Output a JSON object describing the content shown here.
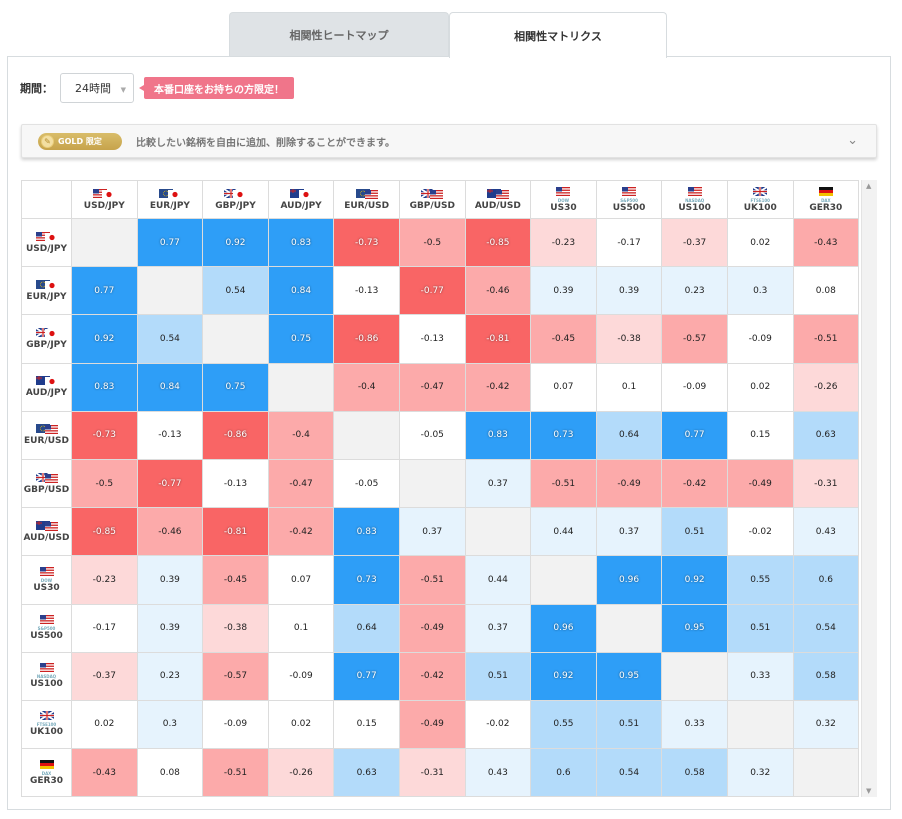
{
  "tabs": [
    {
      "label": "相関性ヒートマップ",
      "active": false
    },
    {
      "label": "相関性マトリクス",
      "active": true
    }
  ],
  "period": {
    "label": "期間：",
    "value": "24時間"
  },
  "promo": {
    "label": "本番口座をお持ちの方限定！"
  },
  "gold": {
    "badge": "GOLD 限定",
    "text": "比較したい銘柄を自由に追加、削除することができます。"
  },
  "colors": {
    "strong_pos": "#2e9ef7",
    "mid_pos": "#b3dbfa",
    "weak_pos": "#e6f3fd",
    "strong_neg": "#f96565",
    "mid_neg": "#fcaaaa",
    "weak_neg": "#fdd9d9",
    "neutral": "#ffffff",
    "diag": "#f2f2f2"
  },
  "symbols": [
    {
      "label": "USD/JPY",
      "flags": [
        "us",
        "jp"
      ],
      "sub": ""
    },
    {
      "label": "EUR/JPY",
      "flags": [
        "eu",
        "jp"
      ],
      "sub": ""
    },
    {
      "label": "GBP/JPY",
      "flags": [
        "gb",
        "jp"
      ],
      "sub": ""
    },
    {
      "label": "AUD/JPY",
      "flags": [
        "au",
        "jp"
      ],
      "sub": ""
    },
    {
      "label": "EUR/USD",
      "flags": [
        "eu",
        "us"
      ],
      "sub": ""
    },
    {
      "label": "GBP/USD",
      "flags": [
        "gb",
        "us"
      ],
      "sub": ""
    },
    {
      "label": "AUD/USD",
      "flags": [
        "au",
        "us"
      ],
      "sub": ""
    },
    {
      "label": "US30",
      "flags": [
        "us"
      ],
      "sub": "DOW"
    },
    {
      "label": "US500",
      "flags": [
        "us"
      ],
      "sub": "S&P500"
    },
    {
      "label": "US100",
      "flags": [
        "us"
      ],
      "sub": "NASDAQ"
    },
    {
      "label": "UK100",
      "flags": [
        "gb"
      ],
      "sub": "FTSE100"
    },
    {
      "label": "GER30",
      "flags": [
        "de"
      ],
      "sub": "DAX"
    }
  ],
  "matrix": [
    [
      null,
      0.77,
      0.92,
      0.83,
      -0.73,
      -0.5,
      -0.85,
      -0.23,
      -0.17,
      -0.37,
      0.02,
      -0.43
    ],
    [
      0.77,
      null,
      0.54,
      0.84,
      -0.13,
      -0.77,
      -0.46,
      0.39,
      0.39,
      0.23,
      0.3,
      0.08
    ],
    [
      0.92,
      0.54,
      null,
      0.75,
      -0.86,
      -0.13,
      -0.81,
      -0.45,
      -0.38,
      -0.57,
      -0.09,
      -0.51
    ],
    [
      0.83,
      0.84,
      0.75,
      null,
      -0.4,
      -0.47,
      -0.42,
      0.07,
      0.1,
      -0.09,
      0.02,
      -0.26
    ],
    [
      -0.73,
      -0.13,
      -0.86,
      -0.4,
      null,
      -0.05,
      0.83,
      0.73,
      0.64,
      0.77,
      0.15,
      0.63
    ],
    [
      -0.5,
      -0.77,
      -0.13,
      -0.47,
      -0.05,
      null,
      0.37,
      -0.51,
      -0.49,
      -0.42,
      -0.49,
      -0.31
    ],
    [
      -0.85,
      -0.46,
      -0.81,
      -0.42,
      0.83,
      0.37,
      null,
      0.44,
      0.37,
      0.51,
      -0.02,
      0.43
    ],
    [
      -0.23,
      0.39,
      -0.45,
      0.07,
      0.73,
      -0.51,
      0.44,
      null,
      0.96,
      0.92,
      0.55,
      0.6
    ],
    [
      -0.17,
      0.39,
      -0.38,
      0.1,
      0.64,
      -0.49,
      0.37,
      0.96,
      null,
      0.95,
      0.51,
      0.54
    ],
    [
      -0.37,
      0.23,
      -0.57,
      -0.09,
      0.77,
      -0.42,
      0.51,
      0.92,
      0.95,
      null,
      0.33,
      0.58
    ],
    [
      0.02,
      0.3,
      -0.09,
      0.02,
      0.15,
      -0.49,
      -0.02,
      0.55,
      0.51,
      0.33,
      null,
      0.32
    ],
    [
      -0.43,
      0.08,
      -0.51,
      -0.26,
      0.63,
      -0.31,
      0.43,
      0.6,
      0.54,
      0.58,
      0.32,
      null
    ]
  ]
}
